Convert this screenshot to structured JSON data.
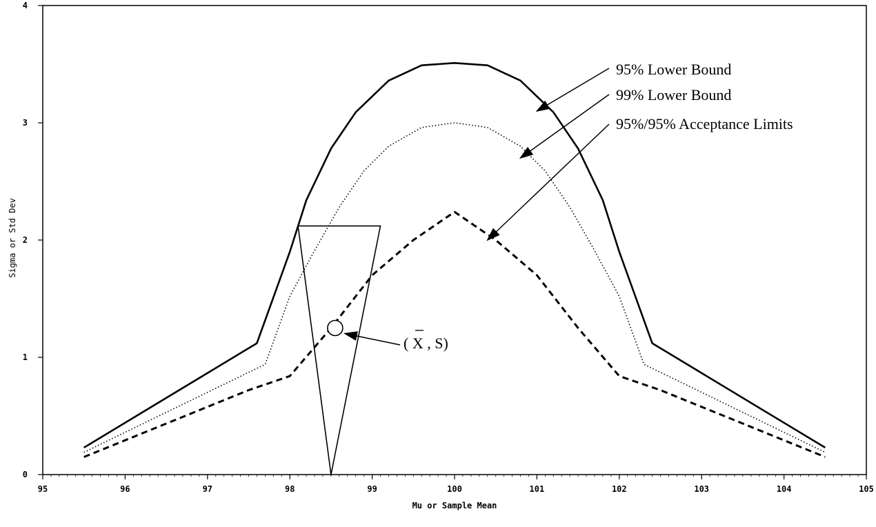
{
  "chart_data": {
    "type": "line",
    "title": "",
    "xlabel": "Mu or Sample Mean",
    "ylabel": "Sigma or Std Dev",
    "xlim": [
      95,
      105
    ],
    "ylim": [
      0,
      4
    ],
    "xticks": [
      "95",
      "96",
      "97",
      "98",
      "99",
      "100",
      "101",
      "102",
      "103",
      "104",
      "105"
    ],
    "yticks": [
      "0",
      "1",
      "2",
      "3",
      "4"
    ],
    "grid": false,
    "series": [
      {
        "name": "95% Lower Bound",
        "style": "solid",
        "x": [
          95.5,
          97.6,
          98.0,
          98.2,
          98.5,
          98.8,
          99.2,
          99.6,
          100.0,
          100.4,
          100.8,
          101.2,
          101.5,
          101.8,
          102.0,
          102.4,
          104.5
        ],
        "y": [
          0.23,
          1.12,
          1.9,
          2.34,
          2.78,
          3.09,
          3.36,
          3.49,
          3.51,
          3.49,
          3.36,
          3.09,
          2.78,
          2.34,
          1.9,
          1.12,
          0.23
        ]
      },
      {
        "name": "99% Lower Bound",
        "style": "dotted",
        "x": [
          95.5,
          97.7,
          98.0,
          98.3,
          98.6,
          98.9,
          99.2,
          99.6,
          100.0,
          100.4,
          100.8,
          101.1,
          101.4,
          101.7,
          102.0,
          102.3,
          104.5
        ],
        "y": [
          0.19,
          0.94,
          1.52,
          1.91,
          2.28,
          2.59,
          2.8,
          2.96,
          3.0,
          2.96,
          2.8,
          2.59,
          2.28,
          1.91,
          1.52,
          0.94,
          0.19
        ]
      },
      {
        "name": "95%/95% Acceptance Limits",
        "style": "dashed",
        "x": [
          95.5,
          97.5,
          98.0,
          98.5,
          99.0,
          99.5,
          100.0,
          100.5,
          101.0,
          101.5,
          102.0,
          102.5,
          104.5
        ],
        "y": [
          0.15,
          0.72,
          0.84,
          1.25,
          1.7,
          2.0,
          2.24,
          2.0,
          1.7,
          1.25,
          0.84,
          0.72,
          0.15
        ]
      }
    ],
    "triangle": {
      "x": [
        98.1,
        99.1,
        98.5
      ],
      "y": [
        2.12,
        2.12,
        0.0
      ]
    },
    "point": {
      "x": 98.55,
      "y": 1.25
    },
    "annotations": [
      {
        "text": "95% Lower Bound",
        "target_series": 0
      },
      {
        "text": "99% Lower Bound",
        "target_series": 1
      },
      {
        "text": "95%/95% Acceptance Limits",
        "target_series": 2
      },
      {
        "text": "( X , S)",
        "target": "point"
      }
    ]
  }
}
